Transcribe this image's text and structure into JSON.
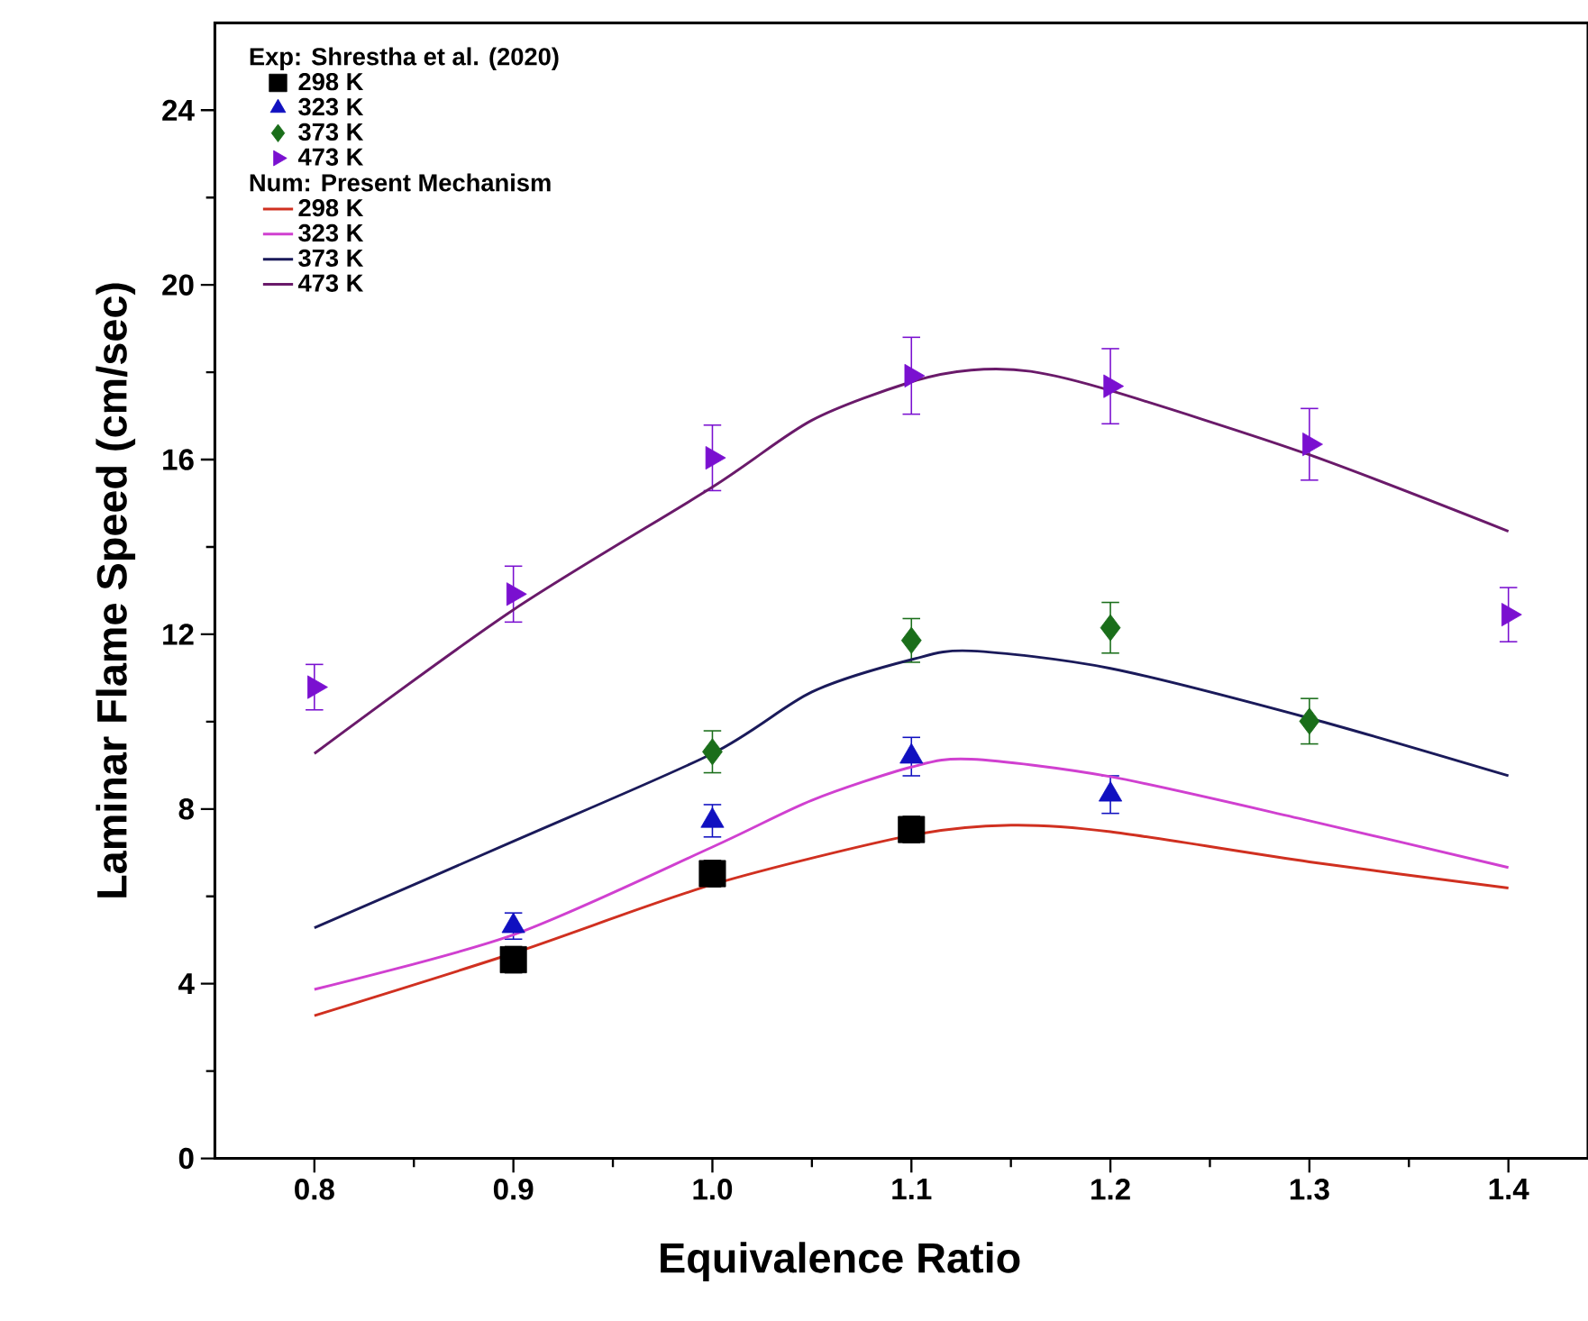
{
  "chart_data": {
    "type": "line",
    "xlabel": "Equivalence Ratio",
    "ylabel": "Laminar Flame Speed (cm/sec)",
    "legend_title": "Exp: Shrestha et al. (2020)",
    "legend": "top left",
    "annotations": [
      "Num: Present Mechanism"
    ],
    "xlim": [
      0.75,
      1.44
    ],
    "ylim": [
      0,
      26
    ],
    "xticks": [
      {
        "value": 0.8,
        "label": "0.8"
      },
      {
        "value": 0.9,
        "label": "0.9"
      },
      {
        "value": 1.0,
        "label": "1.0"
      },
      {
        "value": 1.1,
        "label": "1.1"
      },
      {
        "value": 1.2,
        "label": "1.2"
      },
      {
        "value": 1.3,
        "label": "1.3"
      },
      {
        "value": 1.4,
        "label": "1.4"
      }
    ],
    "yticks": [
      0,
      4,
      8,
      12,
      16,
      20,
      24
    ],
    "series": [
      {
        "name": "298 K",
        "type": "scatter",
        "marker": "square",
        "color": "#000000",
        "x": [
          0.9,
          1.0,
          1.1
        ],
        "values": [
          4.55,
          6.52,
          7.53
        ],
        "errors": [
          0.3,
          0.3,
          0.3
        ]
      },
      {
        "name": "323 K",
        "type": "scatter",
        "marker": "triangle",
        "color": "#1010c0",
        "x": [
          0.9,
          1.0,
          1.1,
          1.2
        ],
        "values": [
          5.32,
          7.73,
          9.2,
          8.33
        ],
        "errors": [
          0.3,
          0.37,
          0.44,
          0.43
        ]
      },
      {
        "name": "373 K",
        "type": "scatter",
        "marker": "diamond",
        "color": "#1a6e1a",
        "x": [
          1.0,
          1.1,
          1.2,
          1.3
        ],
        "values": [
          9.31,
          11.86,
          12.15,
          10.01
        ],
        "errors": [
          0.48,
          0.5,
          0.58,
          0.52
        ]
      },
      {
        "name": "473 K",
        "type": "scatter",
        "marker": "triangle-right",
        "color": "#7a10d0",
        "x": [
          0.8,
          0.9,
          1.0,
          1.1,
          1.2,
          1.3,
          1.4
        ],
        "values": [
          10.79,
          12.92,
          16.04,
          17.92,
          17.68,
          16.35,
          12.45
        ],
        "errors": [
          0.52,
          0.64,
          0.75,
          0.88,
          0.86,
          0.82,
          0.62
        ]
      },
      {
        "name": "298 K",
        "color": "#d03020",
        "x": [
          0.8,
          0.9,
          1.0,
          1.1,
          1.15,
          1.2,
          1.3,
          1.4
        ],
        "values": [
          3.27,
          4.7,
          6.27,
          7.4,
          7.63,
          7.48,
          6.79,
          6.19
        ]
      },
      {
        "name": "323 K",
        "color": "#d040d0",
        "x": [
          0.8,
          0.9,
          1.0,
          1.05,
          1.1,
          1.13,
          1.2,
          1.3,
          1.4
        ],
        "values": [
          3.87,
          5.12,
          7.13,
          8.2,
          8.96,
          9.14,
          8.74,
          7.73,
          6.66
        ]
      },
      {
        "name": "373 K",
        "color": "#1a1a5a",
        "x": [
          0.8,
          0.9,
          1.0,
          1.05,
          1.1,
          1.13,
          1.2,
          1.3,
          1.4
        ],
        "values": [
          5.28,
          7.26,
          9.27,
          10.68,
          11.42,
          11.62,
          11.22,
          10.08,
          8.76
        ]
      },
      {
        "name": "473 K",
        "color": "#6a1a6a",
        "x": [
          0.8,
          0.9,
          1.0,
          1.05,
          1.1,
          1.13,
          1.16,
          1.2,
          1.3,
          1.4
        ],
        "values": [
          9.27,
          12.56,
          15.37,
          16.9,
          17.78,
          18.05,
          18.02,
          17.58,
          16.11,
          14.36
        ]
      }
    ]
  }
}
